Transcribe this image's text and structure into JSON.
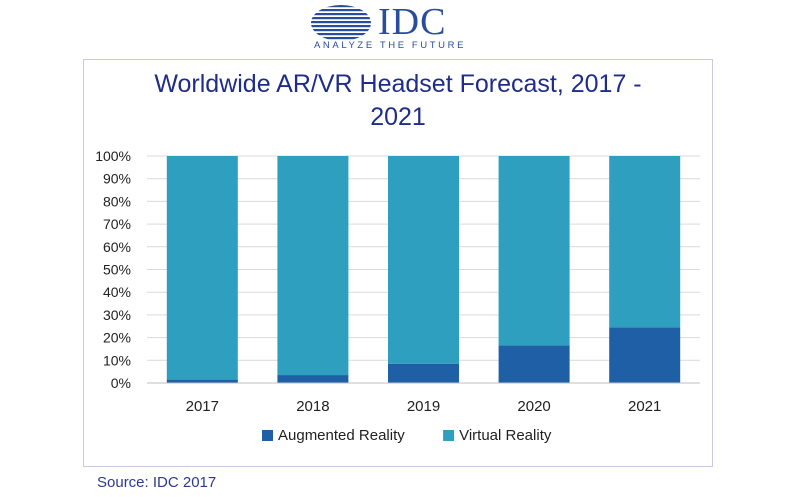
{
  "brand": {
    "name": "IDC",
    "tagline": "ANALYZE THE FUTURE",
    "color": "#2a4d9b"
  },
  "source_note": "Source: IDC 2017",
  "chart_data": {
    "type": "bar",
    "stacked": true,
    "percent": true,
    "title": "Worldwide AR/VR Headset Forecast, 2017 -\n2021",
    "categories": [
      "2017",
      "2018",
      "2019",
      "2020",
      "2021"
    ],
    "series": [
      {
        "name": "Augmented Reality",
        "color": "#1f5fa6",
        "values": [
          1.5,
          3.5,
          8.5,
          16.5,
          24.5
        ]
      },
      {
        "name": "Virtual Reality",
        "color": "#2e9fbf",
        "values": [
          98.5,
          96.5,
          91.5,
          83.5,
          75.5
        ]
      }
    ],
    "y_ticks": [
      "0%",
      "10%",
      "20%",
      "30%",
      "40%",
      "50%",
      "60%",
      "70%",
      "80%",
      "90%",
      "100%"
    ],
    "ylim": [
      0,
      100
    ],
    "xlabel": "",
    "ylabel": "",
    "grid": true,
    "legend_position": "bottom"
  }
}
